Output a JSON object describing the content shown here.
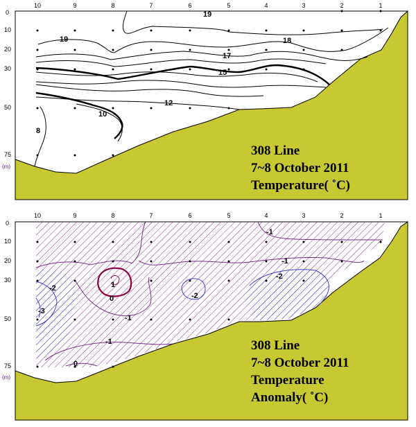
{
  "panels": [
    {
      "id": "temperature",
      "stations": [
        "10",
        "9",
        "8",
        "7",
        "6",
        "5",
        "4",
        "3",
        "2",
        "1"
      ],
      "depths": [
        "0",
        "10",
        "20",
        "30",
        "50",
        "75"
      ],
      "depth_unit": "(m)",
      "contour_labels": [
        "19",
        "19",
        "18",
        "17",
        "15",
        "12",
        "10",
        "8"
      ],
      "title_lines": [
        "308 Line",
        "7~8 October 2011",
        "Temperature( ˚C)"
      ]
    },
    {
      "id": "anomaly",
      "stations": [
        "10",
        "9",
        "8",
        "7",
        "6",
        "5",
        "4",
        "3",
        "2",
        "1"
      ],
      "depths": [
        "0",
        "10",
        "20",
        "30",
        "50",
        "75"
      ],
      "depth_unit": "(m)",
      "contour_labels": [
        "-1",
        "-1",
        "-2",
        "-2",
        "-2",
        "-3",
        "1",
        "0",
        "-1",
        "-1",
        "0"
      ],
      "title_lines": [
        "308 Line",
        "7~8 October 2011",
        "Temperature",
        "Anomaly( ˚C)"
      ]
    }
  ],
  "colors": {
    "seabed": "#c8c832",
    "frame": "#000000",
    "hatch": "#8c2a8c",
    "cold": "#3b3bd0",
    "positive": "#8b0040"
  }
}
